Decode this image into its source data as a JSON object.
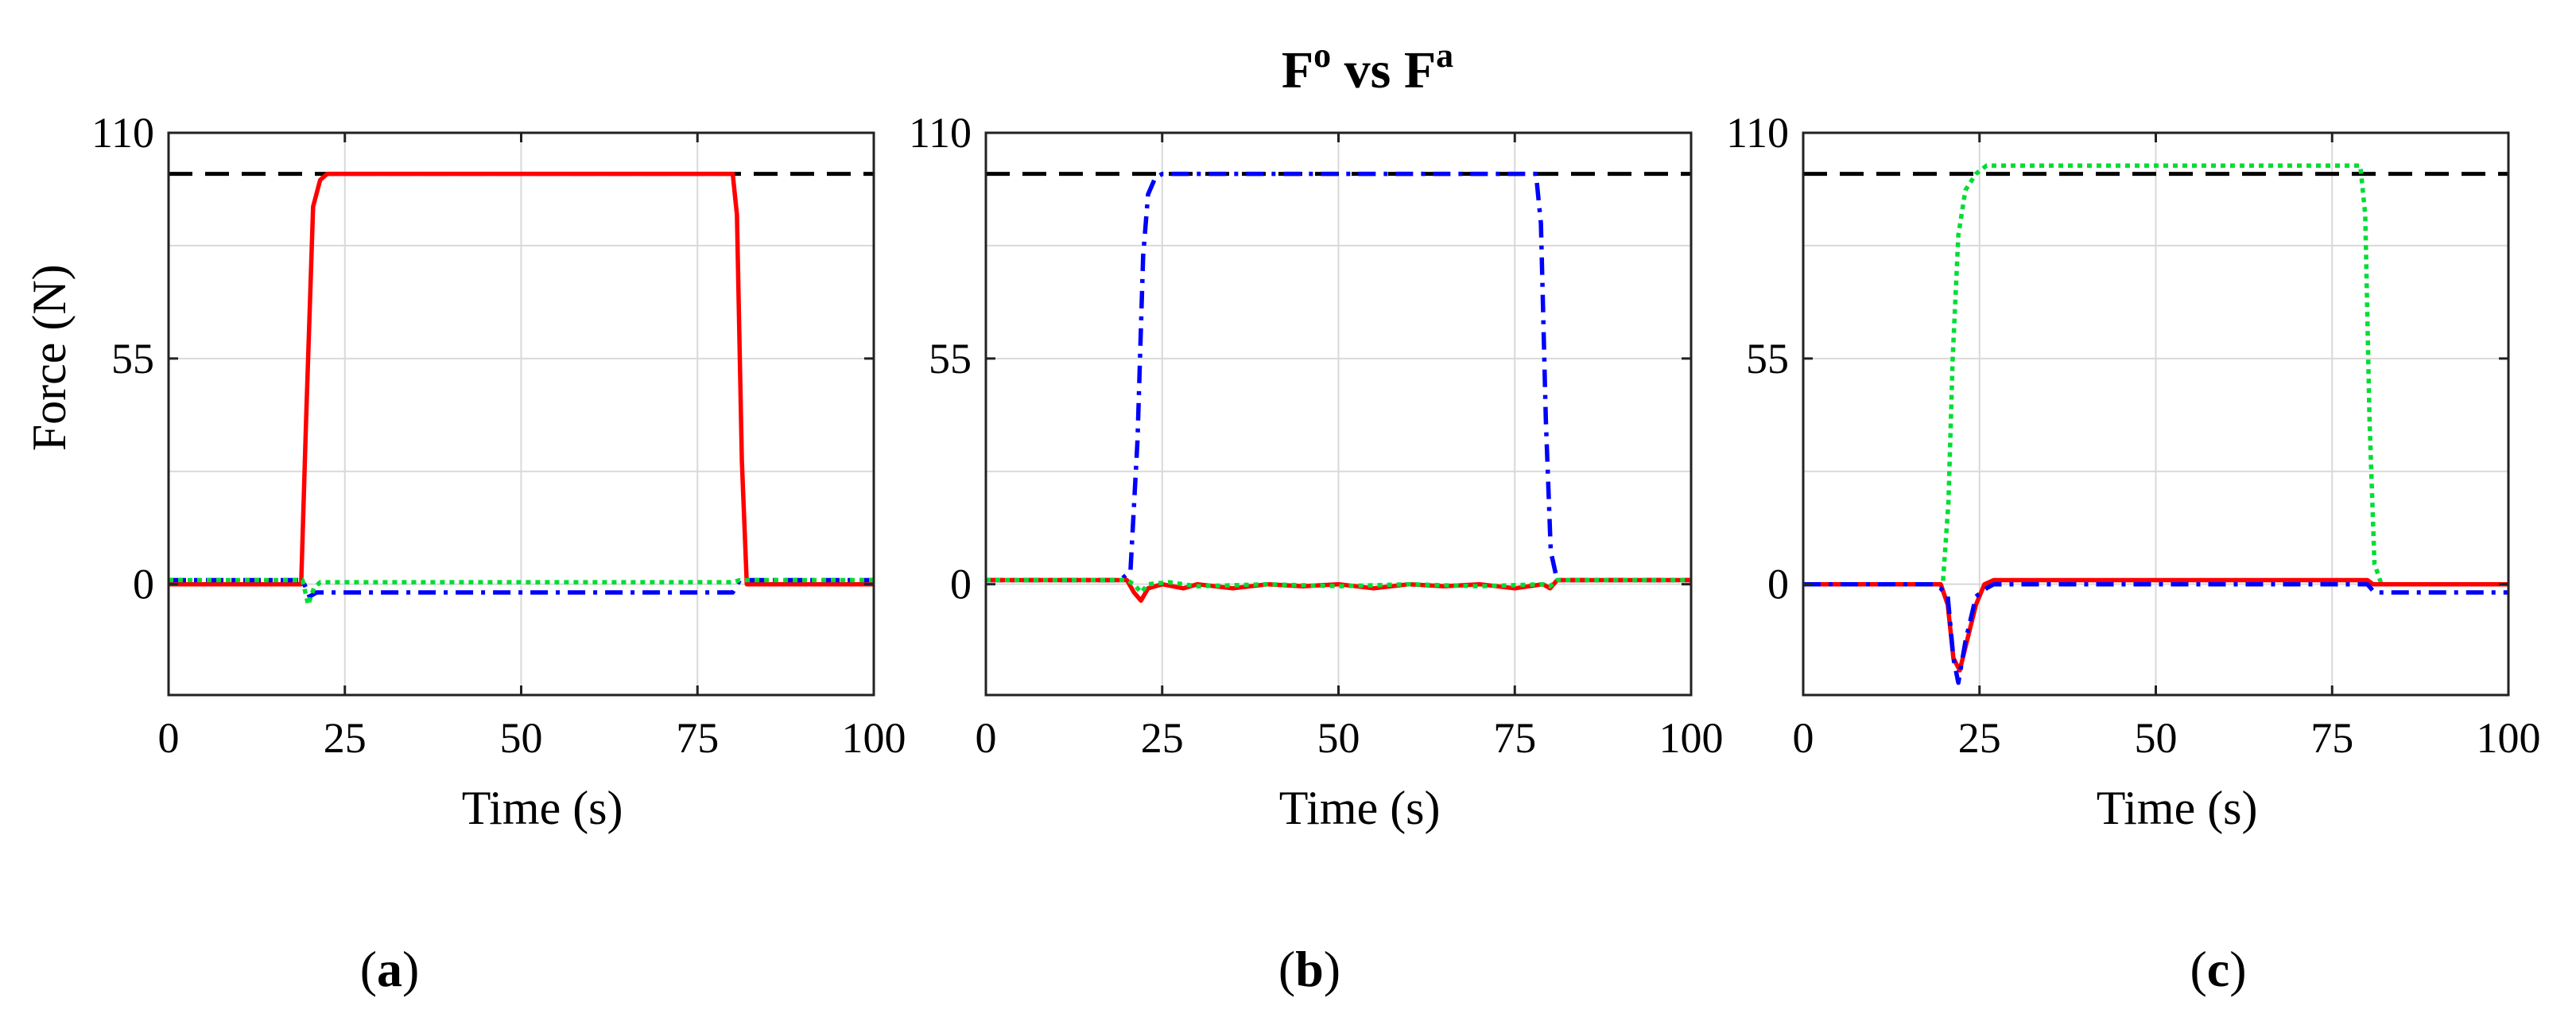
{
  "figure": {
    "title": {
      "main": "F",
      "sup1": "o",
      "mid": " vs F",
      "sup2": "a"
    }
  },
  "colors": {
    "reference": "#000000",
    "red": "#ff0000",
    "blue": "#0000ff",
    "green": "#00dd33",
    "grid": "#d9d9d9"
  },
  "chart_data": [
    {
      "type": "line",
      "panel_label": {
        "open": "(",
        "letter": "a",
        "close": ")"
      },
      "xlabel": "Time (s)",
      "ylabel": "Force (N)",
      "xlim": [
        0,
        100
      ],
      "ylim": [
        -27,
        110
      ],
      "xticks": [
        0,
        25,
        50,
        75,
        100
      ],
      "yticks": [
        0,
        55,
        110
      ],
      "grid_y": [
        -27,
        0,
        27.5,
        55,
        82.5,
        110
      ],
      "series": [
        {
          "name": "reference",
          "color": "#000000",
          "style": "dashed",
          "x": [
            0,
            100
          ],
          "y": [
            100,
            100
          ]
        },
        {
          "name": "red",
          "color": "#ff0000",
          "style": "solid",
          "x": [
            0,
            18.8,
            19.5,
            20.5,
            21.5,
            22.5,
            80,
            80.6,
            81.3,
            82,
            100
          ],
          "y": [
            0,
            0,
            40,
            92,
            98.5,
            100,
            100,
            90,
            30,
            0,
            0
          ]
        },
        {
          "name": "blue",
          "color": "#0000ff",
          "style": "dashdot",
          "x": [
            0,
            19,
            20,
            21,
            22,
            80,
            81,
            100
          ],
          "y": [
            1,
            1,
            -3,
            -2,
            -2,
            -2,
            1,
            1
          ]
        },
        {
          "name": "green",
          "color": "#00dd33",
          "style": "dotted",
          "x": [
            0,
            19,
            19.8,
            20.6,
            21.5,
            80,
            81,
            100
          ],
          "y": [
            1,
            1,
            -5,
            -1,
            0.5,
            0.5,
            1,
            1
          ]
        }
      ]
    },
    {
      "type": "line",
      "panel_label": {
        "open": "(",
        "letter": "b",
        "close": ")"
      },
      "xlabel": "Time (s)",
      "ylabel": "",
      "xlim": [
        0,
        100
      ],
      "ylim": [
        -27,
        110
      ],
      "xticks": [
        0,
        25,
        50,
        75,
        100
      ],
      "yticks": [
        0,
        55,
        110
      ],
      "grid_y": [
        -27,
        0,
        27.5,
        55,
        82.5,
        110
      ],
      "series": [
        {
          "name": "reference",
          "color": "#000000",
          "style": "dashed",
          "x": [
            0,
            100
          ],
          "y": [
            100,
            100
          ]
        },
        {
          "name": "blue",
          "color": "#0000ff",
          "style": "dashdot",
          "x": [
            0,
            19,
            20.5,
            21.5,
            22.3,
            23,
            24,
            25,
            78,
            78.7,
            79.4,
            80.1,
            81,
            100
          ],
          "y": [
            1,
            1,
            3,
            35,
            80,
            95,
            99,
            100,
            100,
            88,
            40,
            8,
            1,
            1
          ]
        },
        {
          "name": "red",
          "color": "#ff0000",
          "style": "solid",
          "x": [
            0,
            20,
            21,
            22,
            23,
            25,
            28,
            30,
            35,
            40,
            45,
            50,
            55,
            60,
            65,
            70,
            75,
            79,
            80,
            81,
            100
          ],
          "y": [
            1,
            1,
            -2,
            -4,
            -1,
            0,
            -1,
            0,
            -1,
            0,
            -0.5,
            0,
            -1,
            0,
            -0.5,
            0,
            -1,
            0,
            -1,
            1,
            1
          ]
        },
        {
          "name": "green",
          "color": "#00dd33",
          "style": "dotted",
          "x": [
            0,
            20,
            21,
            22,
            23,
            26,
            30,
            40,
            50,
            60,
            70,
            79,
            80,
            81,
            100
          ],
          "y": [
            1,
            1,
            0,
            -2,
            0,
            0.5,
            -0.5,
            0,
            -0.5,
            0,
            -0.5,
            0,
            -0.5,
            1,
            1
          ]
        }
      ]
    },
    {
      "type": "line",
      "panel_label": {
        "open": "(",
        "letter": "c",
        "close": ")"
      },
      "xlabel": "Time (s)",
      "ylabel": "",
      "xlim": [
        0,
        100
      ],
      "ylim": [
        -27,
        110
      ],
      "xticks": [
        0,
        25,
        50,
        75,
        100
      ],
      "yticks": [
        0,
        55,
        110
      ],
      "grid_y": [
        -27,
        0,
        27.5,
        55,
        82.5,
        110
      ],
      "series": [
        {
          "name": "reference",
          "color": "#000000",
          "style": "dashed",
          "x": [
            0,
            100
          ],
          "y": [
            100,
            100
          ]
        },
        {
          "name": "green",
          "color": "#00dd33",
          "style": "dotted",
          "x": [
            0,
            19.8,
            20.6,
            21.2,
            22,
            23,
            24.5,
            26,
            79,
            79.7,
            80.3,
            81,
            82,
            100
          ],
          "y": [
            0,
            0,
            20,
            55,
            85,
            96,
            100,
            102,
            102,
            90,
            40,
            5,
            0,
            0
          ]
        },
        {
          "name": "red",
          "color": "#ff0000",
          "style": "solid",
          "x": [
            0,
            19.5,
            20.5,
            21.3,
            22.2,
            23.2,
            24.5,
            25.7,
            27,
            80,
            80.8,
            82,
            100
          ],
          "y": [
            0,
            0,
            -5,
            -18,
            -21,
            -14,
            -5,
            0,
            1,
            1,
            0,
            0,
            0
          ]
        },
        {
          "name": "blue",
          "color": "#0000ff",
          "style": "dashdot",
          "x": [
            0,
            18.5,
            19.5,
            20.5,
            21.3,
            22,
            23,
            24.5,
            26,
            27,
            80,
            81,
            100
          ],
          "y": [
            0,
            0,
            -1,
            -3,
            -18,
            -24,
            -14,
            -3,
            -1,
            0,
            0,
            -2,
            -2
          ]
        }
      ]
    }
  ]
}
